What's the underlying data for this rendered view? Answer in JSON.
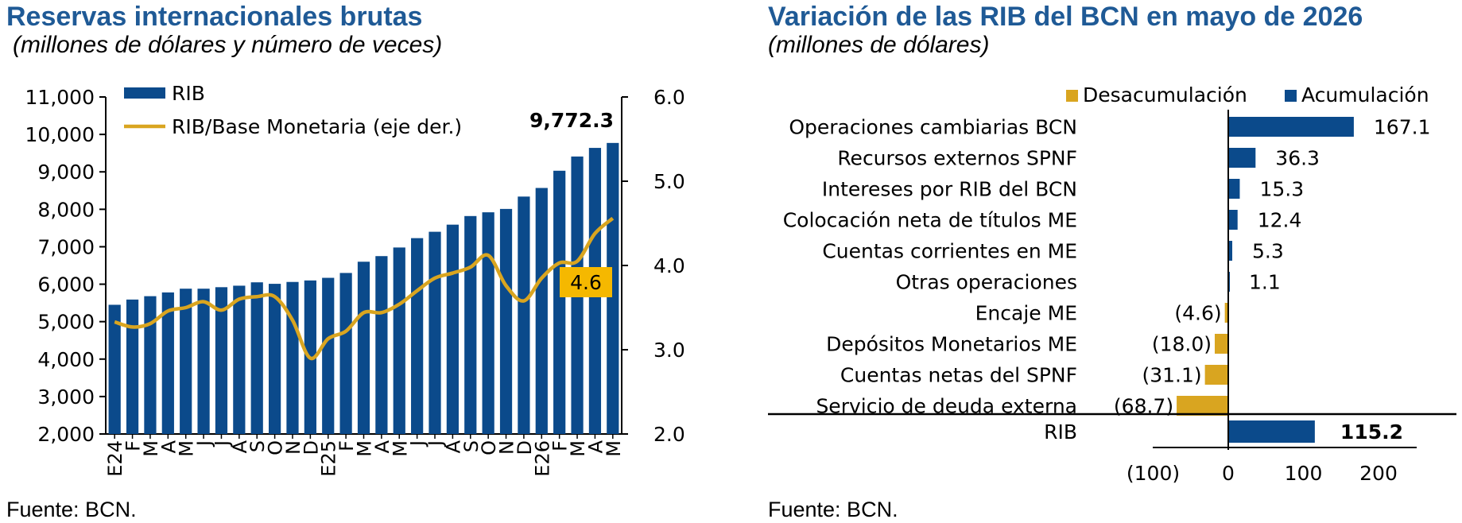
{
  "left": {
    "title": "Reservas internacionales brutas",
    "subtitle": "(millones de dólares y número de veces)",
    "source": "Fuente: BCN.",
    "legend": [
      "RIB",
      "RIB/Base Monetaria (eje der.)"
    ],
    "last_value_label": "9,772.3",
    "ratio_label": "4.6"
  },
  "right": {
    "title": "Variación de las RIB del BCN en mayo de 2026",
    "subtitle": "(millones de dólares)",
    "source": "Fuente: BCN.",
    "legend": [
      "Desacumulación",
      "Acumulación"
    ],
    "total_label": "RIB",
    "total_value": "115.2"
  },
  "colors": {
    "bar": "#0b4a8b",
    "line": "#d9a520",
    "neg": "#d9a520",
    "label_box": "#f5b800"
  },
  "chart_data": [
    {
      "type": "bar",
      "title": "Reservas internacionales brutas",
      "subtitle": "(millones de dólares y número de veces)",
      "categories": [
        "E24",
        "F",
        "M",
        "A",
        "M",
        "J",
        "J",
        "A",
        "S",
        "O",
        "N",
        "D",
        "E25",
        "F",
        "M",
        "A",
        "M",
        "J",
        "J",
        "A",
        "S",
        "O",
        "N",
        "D",
        "E26",
        "F",
        "M",
        "A",
        "M"
      ],
      "series": [
        {
          "name": "RIB",
          "type": "bar",
          "axis": "left",
          "values": [
            5450,
            5590,
            5680,
            5780,
            5880,
            5880,
            5920,
            5960,
            6050,
            6010,
            6060,
            6100,
            6170,
            6300,
            6600,
            6750,
            6980,
            7230,
            7400,
            7590,
            7820,
            7920,
            8010,
            8340,
            8570,
            9030,
            9410,
            9640,
            9772.3
          ]
        },
        {
          "name": "RIB/Base Monetaria (eje der.)",
          "type": "line",
          "axis": "right",
          "values": [
            3.33,
            3.27,
            3.31,
            3.46,
            3.5,
            3.57,
            3.47,
            3.6,
            3.63,
            3.63,
            3.35,
            2.9,
            3.13,
            3.22,
            3.44,
            3.44,
            3.54,
            3.7,
            3.85,
            3.91,
            3.98,
            4.12,
            3.76,
            3.58,
            3.85,
            4.03,
            4.05,
            4.38,
            4.56
          ]
        }
      ],
      "ylim": [
        2000,
        11000
      ],
      "yticks": [
        "2,000",
        "3,000",
        "4,000",
        "5,000",
        "6,000",
        "7,000",
        "8,000",
        "9,000",
        "10,000",
        "11,000"
      ],
      "y2lim": [
        2.0,
        6.0
      ],
      "y2ticks": [
        "2.0",
        "3.0",
        "4.0",
        "5.0",
        "6.0"
      ],
      "grid": false,
      "legend_position": "top-left"
    },
    {
      "type": "bar",
      "orientation": "horizontal",
      "title": "Variación de las RIB del BCN en mayo de 2026",
      "subtitle": "(millones de dólares)",
      "categories": [
        "Operaciones cambiarias BCN",
        "Recursos externos SPNF",
        "Intereses por RIB del BCN",
        "Colocación neta de títulos ME",
        "Cuentas corrientes en ME",
        "Otras operaciones",
        "Encaje ME",
        "Depósitos Monetarios ME",
        "Cuentas netas del SPNF",
        "Servicio de deuda externa"
      ],
      "values": [
        167.1,
        36.3,
        15.3,
        12.4,
        5.3,
        1.1,
        -4.6,
        -18.0,
        -31.1,
        -68.7
      ],
      "labels": [
        "167.1",
        "36.3",
        "15.3",
        "12.4",
        "5.3",
        "1.1",
        "(4.6)",
        "(18.0)",
        "(31.1)",
        "(68.7)"
      ],
      "total": {
        "label": "RIB",
        "value": 115.2
      },
      "series_names": [
        "Desacumulación",
        "Acumulación"
      ],
      "xlim": [
        -100,
        200
      ],
      "xticks": [
        "(100)",
        "0",
        "100",
        "200"
      ],
      "legend_position": "top-right"
    }
  ]
}
